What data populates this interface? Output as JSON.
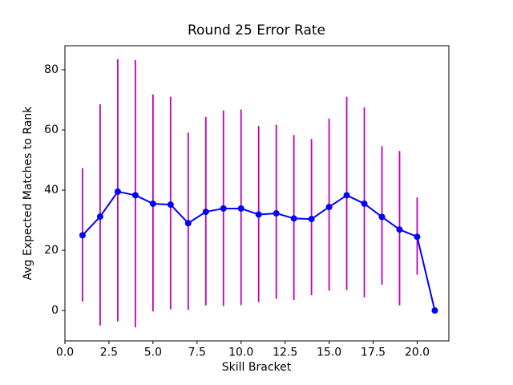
{
  "chart_data": {
    "type": "line",
    "title": "Round 25 Error Rate",
    "xlabel": "Skill Bracket",
    "ylabel": "Avg Expected Matches to Rank",
    "legend": "none",
    "grid": false,
    "line_color": "#0000ff",
    "marker": "circle",
    "marker_color": "#0000ff",
    "error_bar_color": "#bf00bf",
    "x": [
      1,
      2,
      3,
      4,
      5,
      6,
      7,
      8,
      9,
      10,
      11,
      12,
      13,
      14,
      15,
      16,
      17,
      18,
      19,
      20,
      21
    ],
    "y": [
      25.0,
      31.2,
      39.5,
      38.3,
      35.5,
      35.2,
      29.0,
      32.8,
      33.9,
      33.9,
      31.9,
      32.3,
      30.6,
      30.4,
      34.4,
      38.3,
      35.5,
      31.1,
      26.9,
      24.5,
      0.0
    ],
    "error_bars": {
      "upper": [
        47.3,
        68.5,
        83.5,
        83.2,
        71.8,
        71.0,
        59.1,
        64.3,
        66.5,
        66.8,
        61.3,
        61.7,
        58.3,
        57.0,
        63.8,
        71.0,
        67.5,
        54.6,
        53.0,
        37.6,
        null
      ],
      "lower": [
        3.0,
        -5.0,
        -3.6,
        -5.6,
        -0.3,
        0.4,
        0.2,
        1.7,
        1.5,
        1.8,
        2.8,
        3.9,
        3.5,
        5.1,
        6.6,
        6.8,
        4.4,
        8.6,
        1.7,
        11.9,
        null
      ]
    },
    "xlim": [
      0,
      21.8
    ],
    "ylim": [
      -10.1,
      88.0
    ],
    "xticks": {
      "values": [
        0,
        2.5,
        5,
        7.5,
        10,
        12.5,
        15,
        17.5,
        20
      ],
      "labels": [
        "0.0",
        "2.5",
        "5.0",
        "7.5",
        "10.0",
        "12.5",
        "15.0",
        "17.5",
        "20.0"
      ]
    },
    "yticks": {
      "values": [
        0,
        20,
        40,
        60,
        80
      ],
      "labels": [
        "0",
        "20",
        "40",
        "60",
        "80"
      ]
    }
  }
}
